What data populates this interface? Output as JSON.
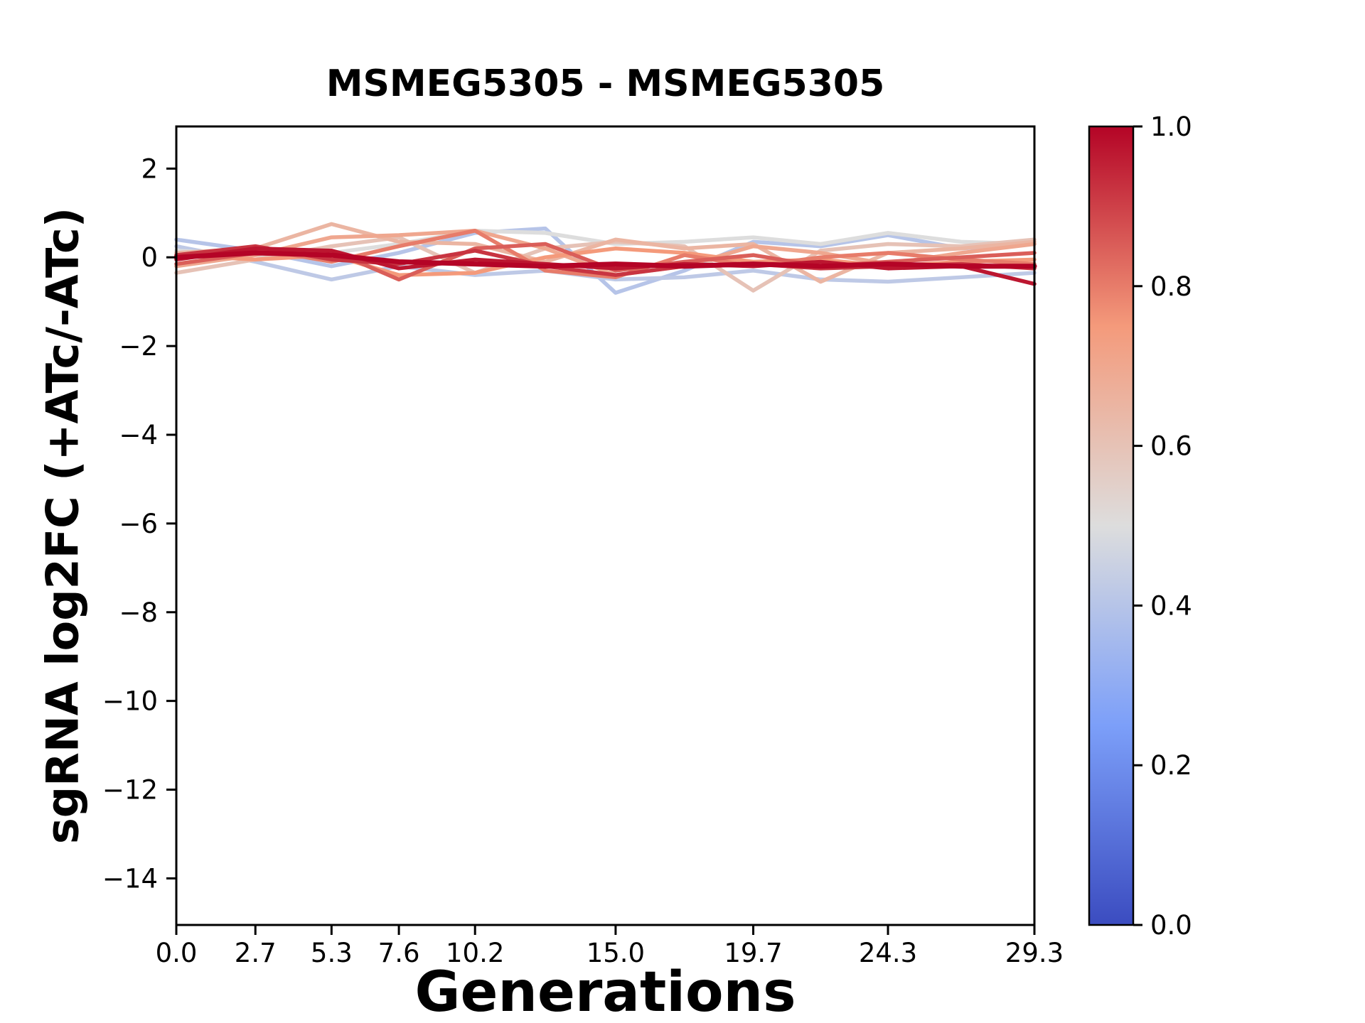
{
  "figure": {
    "background": "#ffffff"
  },
  "chart_data": {
    "type": "line",
    "title": "MSMEG5305 - MSMEG5305",
    "xlabel": "Generations",
    "ylabel": "sgRNA log2FC (+ATc/-ATc)",
    "xlim": [
      0,
      29.3
    ],
    "ylim": [
      -15.05,
      2.95
    ],
    "grid": false,
    "legend": "none",
    "xticks": [
      {
        "v": 0.0,
        "label": "0.0"
      },
      {
        "v": 2.7,
        "label": "2.7"
      },
      {
        "v": 5.3,
        "label": "5.3"
      },
      {
        "v": 7.6,
        "label": "7.6"
      },
      {
        "v": 10.2,
        "label": "10.2"
      },
      {
        "v": 15.0,
        "label": "15.0"
      },
      {
        "v": 19.7,
        "label": "19.7"
      },
      {
        "v": 24.3,
        "label": "24.3"
      },
      {
        "v": 29.3,
        "label": "29.3"
      }
    ],
    "yticks": [
      {
        "v": 2,
        "label": "2"
      },
      {
        "v": 0,
        "label": "0"
      },
      {
        "v": -2,
        "label": "−2"
      },
      {
        "v": -4,
        "label": "−4"
      },
      {
        "v": -6,
        "label": "−6"
      },
      {
        "v": -8,
        "label": "−8"
      },
      {
        "v": -10,
        "label": "−10"
      },
      {
        "v": -12,
        "label": "−12"
      },
      {
        "v": -14,
        "label": "−14"
      }
    ],
    "x": [
      0,
      2.7,
      5.3,
      7.6,
      10.2,
      12.6,
      15.0,
      17.35,
      19.7,
      22.0,
      24.3,
      26.8,
      29.3
    ],
    "series": [
      {
        "colormap_value": 0.4,
        "width": 5.5,
        "y": [
          0.4,
          0.15,
          -0.2,
          0.1,
          0.55,
          0.65,
          -0.8,
          -0.3,
          0.35,
          0.25,
          0.5,
          0.2,
          0.3
        ]
      },
      {
        "colormap_value": 0.42,
        "width": 5.5,
        "y": [
          0.25,
          -0.1,
          -0.5,
          -0.2,
          -0.4,
          -0.3,
          -0.5,
          -0.45,
          -0.3,
          -0.5,
          -0.55,
          -0.45,
          -0.35
        ]
      },
      {
        "colormap_value": 0.5,
        "width": 5.5,
        "y": [
          0.15,
          0.05,
          0.1,
          0.3,
          0.6,
          0.55,
          0.3,
          0.35,
          0.45,
          0.3,
          0.55,
          0.35,
          0.3
        ]
      },
      {
        "colormap_value": 0.6,
        "width": 5.5,
        "y": [
          -0.35,
          -0.05,
          0.25,
          0.45,
          -0.35,
          0.2,
          0.35,
          0.25,
          -0.75,
          0.15,
          0.3,
          0.25,
          0.4
        ]
      },
      {
        "colormap_value": 0.65,
        "width": 5.5,
        "y": [
          0.1,
          0.2,
          0.75,
          0.35,
          0.3,
          -0.1,
          0.4,
          0.2,
          0.3,
          -0.55,
          0.1,
          0.2,
          0.35
        ]
      },
      {
        "colormap_value": 0.7,
        "width": 5.5,
        "y": [
          -0.2,
          0.05,
          0.45,
          0.5,
          0.6,
          0.2,
          -0.4,
          -0.2,
          0.25,
          0.1,
          -0.15,
          0.1,
          0.3
        ]
      },
      {
        "colormap_value": 0.75,
        "width": 5.5,
        "y": [
          0.05,
          -0.05,
          0.05,
          -0.4,
          -0.35,
          0.0,
          0.2,
          0.1,
          -0.1,
          -0.05,
          -0.2,
          -0.1,
          -0.05
        ]
      },
      {
        "colormap_value": 0.8,
        "width": 5.5,
        "y": [
          0.0,
          0.2,
          -0.1,
          0.25,
          0.6,
          -0.3,
          -0.45,
          0.05,
          -0.2,
          0.0,
          0.1,
          -0.05,
          -0.15
        ]
      },
      {
        "colormap_value": 0.85,
        "width": 5.5,
        "y": [
          -0.15,
          0.1,
          0.15,
          -0.5,
          0.2,
          0.3,
          -0.3,
          -0.1,
          0.05,
          -0.2,
          -0.1,
          0.0,
          0.1
        ]
      },
      {
        "colormap_value": 0.92,
        "width": 5.5,
        "y": [
          0.05,
          0.25,
          -0.05,
          -0.15,
          0.15,
          -0.2,
          -0.4,
          -0.2,
          -0.15,
          -0.25,
          -0.2,
          -0.15,
          -0.25
        ]
      },
      {
        "colormap_value": 0.97,
        "width": 5.5,
        "y": [
          -0.05,
          0.2,
          0.15,
          -0.25,
          -0.05,
          -0.15,
          -0.25,
          -0.15,
          -0.2,
          -0.1,
          -0.25,
          -0.2,
          -0.6
        ]
      },
      {
        "colormap_value": 1.0,
        "width": 7.0,
        "y": [
          0.0,
          0.1,
          0.05,
          -0.1,
          -0.15,
          -0.2,
          -0.15,
          -0.2,
          -0.15,
          -0.2,
          -0.15,
          -0.2,
          -0.2
        ]
      }
    ],
    "colorbar": {
      "colormap": "coolwarm",
      "anchors": [
        "#3B4CC0",
        "#7C9FF9",
        "#DDDDDD",
        "#F49A7B",
        "#B40426"
      ],
      "min": 0.0,
      "max": 1.0,
      "ticks": [
        {
          "v": 1.0,
          "label": "1.0"
        },
        {
          "v": 0.8,
          "label": "0.8"
        },
        {
          "v": 0.6,
          "label": "0.6"
        },
        {
          "v": 0.4,
          "label": "0.4"
        },
        {
          "v": 0.2,
          "label": "0.2"
        },
        {
          "v": 0.0,
          "label": "0.0"
        }
      ]
    }
  }
}
